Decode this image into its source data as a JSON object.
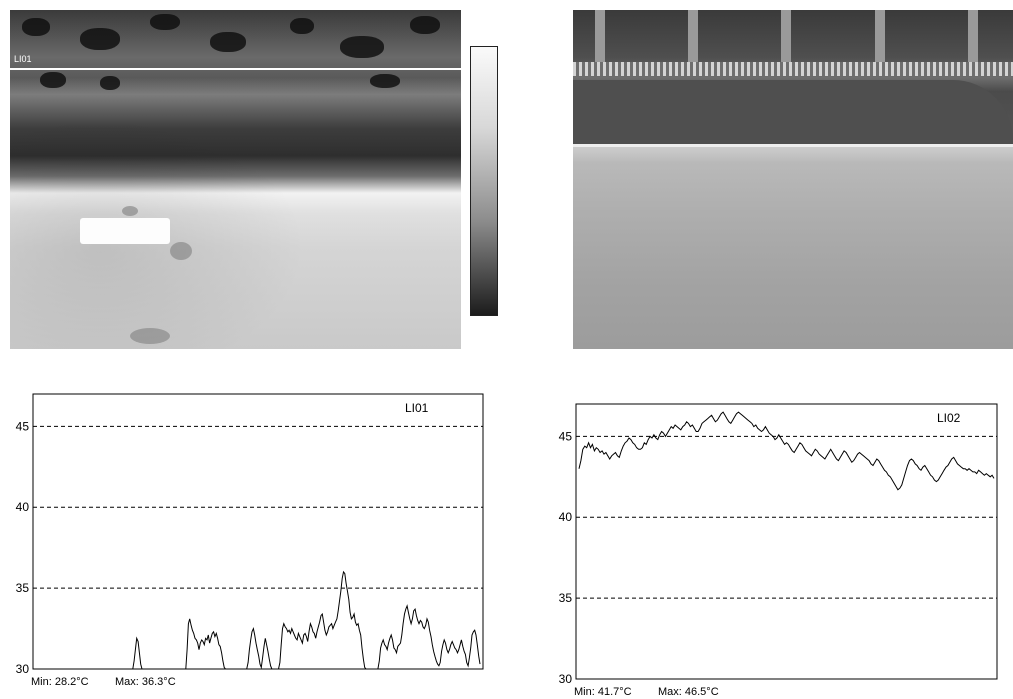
{
  "thermal_image": {
    "line_label": "LI01"
  },
  "chart_data": [
    {
      "type": "line",
      "legend": "LI01",
      "ylim": [
        30,
        47
      ],
      "yticks": [
        30,
        35,
        40,
        45
      ],
      "grid": "dashed horizontal",
      "min_label": "Min: 28.2°C",
      "max_label": "Max: 36.3°C",
      "series": [
        {
          "values": [
            30,
            30,
            30,
            30,
            30,
            30,
            30,
            30,
            30,
            30,
            30,
            30,
            30,
            30,
            30,
            30,
            30,
            30,
            30,
            30,
            30,
            30,
            30,
            30,
            30,
            30,
            30,
            30,
            30,
            30,
            30,
            30,
            30,
            30,
            30,
            30,
            30,
            30,
            30,
            30,
            30,
            30,
            30,
            30,
            30,
            30,
            30,
            30,
            30,
            30,
            30,
            30,
            30,
            30,
            30,
            30,
            30,
            30,
            30,
            30,
            30,
            30,
            30,
            30,
            30,
            30,
            30,
            30,
            30,
            30,
            30,
            30,
            30,
            30,
            30.5,
            31.2,
            31.9,
            31.7,
            31,
            30.3,
            30,
            30,
            30,
            30,
            30,
            30,
            30,
            30,
            30,
            30,
            30,
            30,
            30,
            30,
            30,
            30,
            30,
            30,
            30,
            30,
            30,
            30,
            30,
            30,
            30,
            30,
            30,
            30,
            30,
            30,
            30,
            30,
            30,
            30,
            31.2,
            32.8,
            33.1,
            32.7,
            32.4,
            32.2,
            31.9,
            31.8,
            31.6,
            31.2,
            31.6,
            31.8,
            31.7,
            31.5,
            31.9,
            31.8,
            32.1,
            31.6,
            31.9,
            32.2,
            32.3,
            32,
            32.2,
            31.9,
            31.5,
            31.4,
            31,
            30.5,
            30.1,
            30,
            30,
            30,
            30,
            30,
            30,
            30,
            30,
            30,
            30,
            30,
            30,
            30,
            30,
            30,
            30,
            30,
            30.4,
            31.2,
            31.8,
            32.3,
            32.5,
            32.1,
            31.6,
            31.2,
            30.8,
            30.3,
            30.1,
            30.7,
            31.4,
            31.9,
            31.5,
            31.1,
            30.6,
            30.2,
            30,
            30,
            30,
            30,
            30,
            30,
            30.4,
            31.5,
            32.5,
            32.8,
            32.6,
            32.5,
            32.3,
            32.4,
            32.2,
            32.5,
            32.3,
            32.1,
            31.9,
            31.8,
            32.2,
            32,
            31.8,
            31.6,
            32.1,
            32.2,
            32,
            31.7,
            32.3,
            32.8,
            32.6,
            32.3,
            32.2,
            31.9,
            32.3,
            32.6,
            32.9,
            33.3,
            33.4,
            32.9,
            32.4,
            32.1,
            32.3,
            32.6,
            32.7,
            32.8,
            32.5,
            32.7,
            32.9,
            33.1,
            33.6,
            34.2,
            34.8,
            35.6,
            36,
            35.9,
            35.3,
            34.8,
            34.3,
            33.5,
            33.1,
            33.2,
            33.4,
            32.9,
            32.7,
            32.8,
            32.4,
            32.1,
            31.3,
            30.6,
            30.1,
            30,
            30,
            30,
            30,
            30,
            30,
            30,
            30,
            30,
            30,
            30.5,
            31.3,
            31.6,
            31.8,
            31.5,
            31.4,
            31.2,
            31.6,
            31.9,
            32.1,
            31.8,
            31.3,
            31.2,
            31,
            31.4,
            31.5,
            31.6,
            32.1,
            32.8,
            33.4,
            33.7,
            33.9,
            33.5,
            33.1,
            32.8,
            33.1,
            33.6,
            33.7,
            33.3,
            33,
            32.8,
            33,
            32.9,
            32.6,
            32.5,
            32.7,
            33.1,
            32.9,
            32.4,
            32,
            31.5,
            31.1,
            30.8,
            30.5,
            30.3,
            30.2,
            30.4,
            31.1,
            31.5,
            31.8,
            31.6,
            31.2,
            31,
            31.2,
            31.5,
            31.7,
            31.5,
            31.3,
            31.2,
            31,
            31.2,
            31.5,
            31.8,
            31.4,
            31.1,
            30.9,
            30.4,
            30.2,
            30.7,
            31.3,
            32.1,
            32.3,
            32.4,
            32.1,
            31.5,
            30.8,
            30.3
          ]
        }
      ]
    },
    {
      "type": "line",
      "legend": "LI02",
      "ylim": [
        30,
        47
      ],
      "yticks": [
        30,
        35,
        40,
        45
      ],
      "grid": "dashed horizontal",
      "min_label": "Min: 41.7°C",
      "max_label": "Max: 46.5°C",
      "series": [
        {
          "values": [
            43,
            43.5,
            44.2,
            44.4,
            44.3,
            44.6,
            44.3,
            44.5,
            44.1,
            44.3,
            44.2,
            44,
            44.1,
            43.9,
            44,
            43.8,
            43.6,
            43.8,
            43.9,
            44,
            43.8,
            43.7,
            44.1,
            44.4,
            44.6,
            44.7,
            44.9,
            44.8,
            44.6,
            44.5,
            44.3,
            44.2,
            44.2,
            44.3,
            44.6,
            44.5,
            44.8,
            45,
            44.9,
            45.1,
            44.9,
            44.8,
            45.1,
            45.3,
            45.2,
            45,
            45.2,
            45.4,
            45.6,
            45.5,
            45.7,
            45.6,
            45.5,
            45.4,
            45.6,
            45.7,
            45.9,
            45.8,
            45.6,
            45.7,
            45.5,
            45.3,
            45.3,
            45.5,
            45.8,
            45.9,
            46,
            46.1,
            46.2,
            46.3,
            46.1,
            45.9,
            46,
            46.2,
            46.4,
            46.5,
            46.3,
            46.1,
            45.9,
            45.8,
            46,
            46.2,
            46.4,
            46.5,
            46.4,
            46.3,
            46.2,
            46.1,
            46,
            45.9,
            45.8,
            45.6,
            45.7,
            45.5,
            45.4,
            45.3,
            45.4,
            45.6,
            45.4,
            45.2,
            45.1,
            45,
            44.8,
            44.9,
            45.1,
            44.9,
            44.7,
            44.5,
            44.6,
            44.5,
            44.3,
            44.1,
            44,
            44.2,
            44.4,
            44.6,
            44.5,
            44.3,
            44.1,
            44,
            43.9,
            43.8,
            44,
            44.2,
            44.1,
            43.9,
            43.8,
            43.7,
            43.6,
            43.8,
            44,
            44.2,
            44,
            43.8,
            43.6,
            43.5,
            43.7,
            43.9,
            44.1,
            44,
            43.8,
            43.6,
            43.4,
            43.5,
            43.7,
            43.9,
            44,
            43.9,
            43.8,
            43.7,
            43.6,
            43.5,
            43.3,
            43.2,
            43.4,
            43.6,
            43.5,
            43.3,
            43.1,
            42.9,
            42.8,
            42.6,
            42.5,
            42.3,
            42.1,
            41.9,
            41.7,
            41.8,
            42,
            42.4,
            42.8,
            43.2,
            43.5,
            43.6,
            43.5,
            43.3,
            43.2,
            43,
            42.9,
            43.1,
            43.2,
            43,
            42.8,
            42.6,
            42.5,
            42.3,
            42.2,
            42.3,
            42.5,
            42.7,
            42.9,
            43.1,
            43.2,
            43.4,
            43.6,
            43.7,
            43.5,
            43.3,
            43.2,
            43.1,
            43,
            43,
            42.9,
            43,
            42.9,
            42.8,
            42.8,
            42.7,
            42.9,
            42.8,
            42.7,
            42.6,
            42.7,
            42.6,
            42.5,
            42.6,
            42.4
          ]
        }
      ]
    }
  ]
}
